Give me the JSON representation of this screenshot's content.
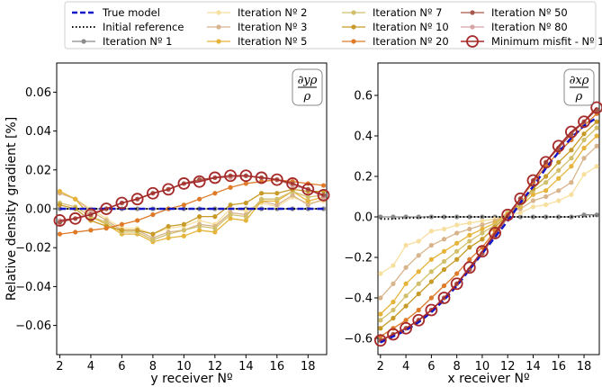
{
  "chart_data": {
    "type": "line",
    "ylabel": "Relative density gradient [%]",
    "legend_placement": "top",
    "legend": [
      {
        "key": "true",
        "label": "True model",
        "color": "#1515c8",
        "style": "dash"
      },
      {
        "key": "initial",
        "label": "Initial reference",
        "color": "#000000",
        "style": "dot"
      },
      {
        "key": "it1",
        "label": "Iteration Nº 1",
        "color": "#8a8a8a",
        "style": "marker"
      },
      {
        "key": "it2",
        "label": "Iteration Nº 2",
        "color": "#f7dfa0",
        "style": "marker"
      },
      {
        "key": "it3",
        "label": "Iteration Nº 3",
        "color": "#d8b48c",
        "style": "marker"
      },
      {
        "key": "it5",
        "label": "Iteration Nº 5",
        "color": "#e6b43a",
        "style": "marker"
      },
      {
        "key": "it7",
        "label": "Iteration Nº 7",
        "color": "#d2bf6c",
        "style": "marker"
      },
      {
        "key": "it10",
        "label": "Iteration Nº 10",
        "color": "#c89a28",
        "style": "marker"
      },
      {
        "key": "it20",
        "label": "Iteration Nº 20",
        "color": "#de7a28",
        "style": "marker"
      },
      {
        "key": "it50",
        "label": "Iteration Nº 50",
        "color": "#a8584a",
        "style": "marker"
      },
      {
        "key": "it80",
        "label": "Iteration Nº 80",
        "color": "#d6a4a4",
        "style": "marker"
      },
      {
        "key": "min",
        "label": "Minimum misfit - Nº 100",
        "color": "#a52a2a",
        "style": "circle"
      }
    ],
    "panels": [
      {
        "id": "left",
        "xlabel": "y receiver Nº",
        "annotation": {
          "num": "∂yρ",
          "den": "ρ"
        },
        "xlim": [
          1.8,
          19.2
        ],
        "ylim": [
          -0.075,
          0.075
        ],
        "xticks": [
          2,
          4,
          6,
          8,
          10,
          12,
          14,
          16,
          18
        ],
        "yticks": [
          -0.06,
          -0.04,
          -0.02,
          0.0,
          0.02,
          0.04,
          0.06
        ],
        "ytick_labels": [
          "−0.06",
          "−0.04",
          "−0.02",
          "0.00",
          "0.02",
          "0.04",
          "0.06"
        ],
        "x": [
          2,
          3,
          4,
          5,
          6,
          7,
          8,
          9,
          10,
          11,
          12,
          13,
          14,
          15,
          16,
          17,
          18,
          19
        ],
        "series": {
          "true": [
            0,
            0,
            0,
            0,
            0,
            0,
            0,
            0,
            0,
            0,
            0,
            0,
            0,
            0,
            0,
            0,
            0,
            0
          ],
          "initial": [
            0,
            0,
            0,
            0,
            0,
            0,
            0,
            0,
            0,
            0,
            0,
            0,
            0,
            0,
            0,
            0,
            0,
            0
          ],
          "it1": [
            0,
            0,
            0,
            0,
            0,
            0,
            0,
            0,
            0,
            0,
            0,
            0,
            0,
            0,
            0,
            0,
            0,
            0
          ],
          "it2": [
            0.009,
            0.005,
            0,
            -0.005,
            -0.01,
            -0.01,
            -0.013,
            -0.01,
            -0.009,
            -0.006,
            -0.008,
            0,
            -0.001,
            0.003,
            0.001,
            0.006,
            0.003,
            0.004
          ],
          "it3": [
            0.008,
            0.005,
            -0.001,
            -0.006,
            -0.011,
            -0.011,
            -0.015,
            -0.012,
            -0.011,
            -0.008,
            -0.009,
            -0.002,
            -0.003,
            0.004,
            0.002,
            0.007,
            0.002,
            0.005
          ],
          "it5": [
            0.009,
            0.005,
            -0.004,
            -0.008,
            -0.013,
            -0.013,
            -0.017,
            -0.015,
            -0.014,
            -0.011,
            -0.012,
            -0.005,
            -0.006,
            0.004,
            0.004,
            0.009,
            0.004,
            0.006
          ],
          "it7": [
            0.003,
            0.001,
            -0.004,
            -0.007,
            -0.012,
            -0.012,
            -0.016,
            -0.013,
            -0.011,
            -0.009,
            -0.01,
            -0.003,
            -0.004,
            0.005,
            0.005,
            0.009,
            0.006,
            0.007
          ],
          "it10": [
            0.002,
            0,
            -0.006,
            -0.009,
            -0.011,
            -0.011,
            -0.013,
            -0.009,
            -0.008,
            -0.004,
            -0.004,
            0.002,
            0.003,
            0.008,
            0.008,
            0.01,
            0.009,
            0.009
          ],
          "it20": [
            -0.013,
            -0.012,
            -0.011,
            -0.01,
            -0.008,
            -0.006,
            -0.003,
            0,
            0.002,
            0.005,
            0.008,
            0.011,
            0.013,
            0.014,
            0.015,
            0.014,
            0.013,
            0.012
          ],
          "it50": [
            -0.007,
            -0.005,
            -0.003,
            0,
            0.003,
            0.005,
            0.008,
            0.01,
            0.013,
            0.015,
            0.016,
            0.017,
            0.017,
            0.016,
            0.015,
            0.013,
            0.01,
            0.007
          ],
          "it80": [
            -0.006,
            -0.005,
            -0.002,
            0,
            0.003,
            0.005,
            0.008,
            0.01,
            0.013,
            0.015,
            0.016,
            0.016,
            0.017,
            0.016,
            0.015,
            0.012,
            0.01,
            0.006
          ],
          "min": [
            -0.006,
            -0.005,
            -0.003,
            0,
            0.003,
            0.005,
            0.008,
            0.01,
            0.013,
            0.014,
            0.016,
            0.017,
            0.017,
            0.016,
            0.015,
            0.013,
            0.01,
            0.007
          ]
        }
      },
      {
        "id": "right",
        "xlabel": "x receiver Nº",
        "annotation": {
          "num": "∂xρ",
          "den": "ρ"
        },
        "xlim": [
          1.8,
          19.2
        ],
        "ylim": [
          -0.68,
          0.76
        ],
        "xticks": [
          2,
          4,
          6,
          8,
          10,
          12,
          14,
          16,
          18
        ],
        "yticks": [
          -0.6,
          -0.4,
          -0.2,
          0.0,
          0.2,
          0.4,
          0.6
        ],
        "ytick_labels": [
          "−0.6",
          "−0.4",
          "−0.2",
          "0.0",
          "0.2",
          "0.4",
          "0.6"
        ],
        "x": [
          2,
          3,
          4,
          5,
          6,
          7,
          8,
          9,
          10,
          11,
          12,
          13,
          14,
          15,
          16,
          17,
          18,
          19
        ],
        "series": {
          "true": [
            -0.62,
            -0.59,
            -0.56,
            -0.52,
            -0.47,
            -0.41,
            -0.34,
            -0.26,
            -0.18,
            -0.1,
            -0.02,
            0.07,
            0.15,
            0.24,
            0.32,
            0.39,
            0.45,
            0.49
          ],
          "initial": [
            -0.01,
            -0.01,
            -0.005,
            -0.005,
            0,
            0,
            0,
            0,
            0,
            0,
            0,
            0,
            0,
            0,
            0,
            0,
            0,
            0.005
          ],
          "it1": [
            0,
            0,
            0,
            0,
            0,
            0,
            0,
            0,
            0,
            0,
            0,
            0,
            0,
            0,
            0,
            0,
            0.01,
            0.01
          ],
          "it2": [
            -0.28,
            -0.24,
            -0.14,
            -0.12,
            -0.07,
            -0.06,
            -0.04,
            -0.03,
            -0.02,
            -0.01,
            0.01,
            0.02,
            0.05,
            0.06,
            0.08,
            0.11,
            0.21,
            0.25
          ],
          "it3": [
            -0.4,
            -0.33,
            -0.25,
            -0.19,
            -0.14,
            -0.11,
            -0.08,
            -0.06,
            -0.04,
            -0.02,
            0.02,
            0.04,
            0.08,
            0.1,
            0.13,
            0.17,
            0.29,
            0.35
          ],
          "it5": [
            -0.48,
            -0.42,
            -0.33,
            -0.27,
            -0.21,
            -0.17,
            -0.13,
            -0.09,
            -0.06,
            -0.03,
            0.02,
            0.05,
            0.11,
            0.13,
            0.19,
            0.25,
            0.34,
            0.4
          ],
          "it7": [
            -0.51,
            -0.46,
            -0.39,
            -0.33,
            -0.27,
            -0.22,
            -0.17,
            -0.12,
            -0.08,
            -0.04,
            0.02,
            0.06,
            0.13,
            0.17,
            0.23,
            0.29,
            0.38,
            0.44
          ],
          "it10": [
            -0.55,
            -0.5,
            -0.44,
            -0.38,
            -0.32,
            -0.26,
            -0.21,
            -0.15,
            -0.11,
            -0.05,
            0.01,
            0.07,
            0.14,
            0.2,
            0.27,
            0.33,
            0.41,
            0.47
          ],
          "it20": [
            -0.59,
            -0.55,
            -0.51,
            -0.46,
            -0.4,
            -0.34,
            -0.28,
            -0.21,
            -0.15,
            -0.07,
            0.01,
            0.09,
            0.17,
            0.25,
            0.32,
            0.38,
            0.45,
            0.51
          ],
          "it50": [
            -0.61,
            -0.58,
            -0.55,
            -0.51,
            -0.46,
            -0.4,
            -0.33,
            -0.26,
            -0.18,
            -0.09,
            0,
            0.09,
            0.18,
            0.27,
            0.34,
            0.41,
            0.47,
            0.53
          ],
          "it80": [
            -0.61,
            -0.58,
            -0.55,
            -0.51,
            -0.46,
            -0.4,
            -0.33,
            -0.26,
            -0.18,
            -0.09,
            0,
            0.09,
            0.18,
            0.27,
            0.34,
            0.41,
            0.47,
            0.53
          ],
          "min": [
            -0.61,
            -0.58,
            -0.55,
            -0.51,
            -0.46,
            -0.4,
            -0.33,
            -0.25,
            -0.17,
            -0.08,
            0.01,
            0.09,
            0.18,
            0.27,
            0.35,
            0.42,
            0.47,
            0.54
          ]
        }
      }
    ]
  }
}
